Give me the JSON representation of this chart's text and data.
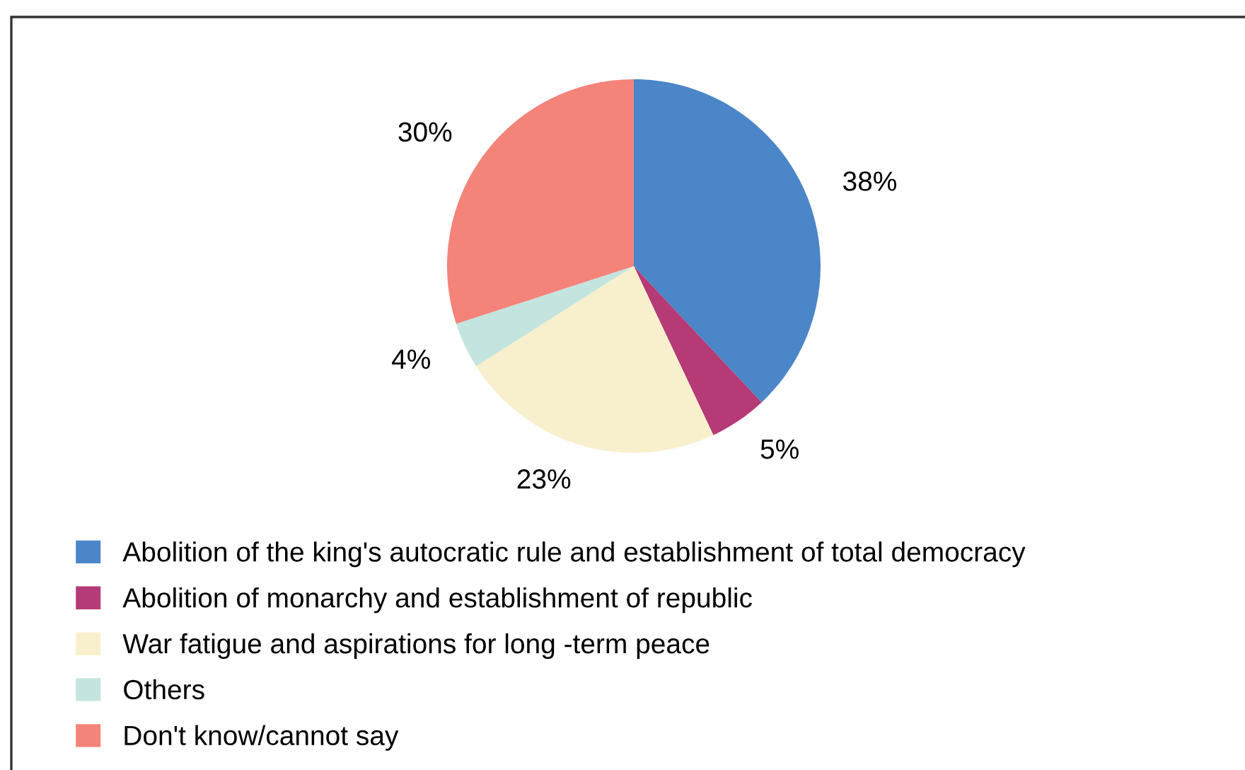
{
  "chart_data": {
    "type": "pie",
    "categories": [
      "Abolition of the king's autocratic rule and establishment of total democracy",
      "Abolition of monarchy and establishment of republic",
      "War fatigue and aspirations for long -term peace",
      "Others",
      "Don't know/cannot say"
    ],
    "values": [
      38,
      5,
      23,
      4,
      30
    ],
    "value_labels": [
      "38%",
      "5%",
      "23%",
      "4%",
      "30%"
    ],
    "colors": [
      "#4a86c8",
      "#b53a76",
      "#f8f0cd",
      "#c4e4df",
      "#f48379"
    ],
    "legend": "bottom left"
  }
}
